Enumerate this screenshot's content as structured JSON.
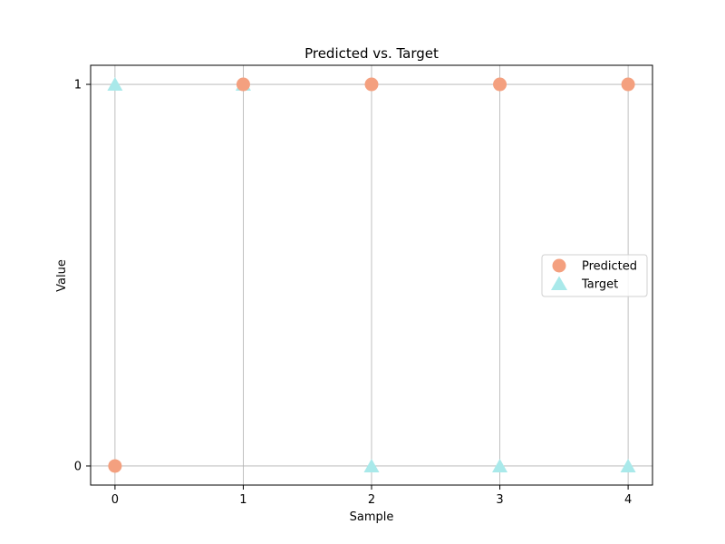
{
  "chart_data": {
    "type": "scatter",
    "title": "Predicted vs. Target",
    "xlabel": "Sample",
    "ylabel": "Value",
    "x": [
      0,
      1,
      2,
      3,
      4
    ],
    "xlim": [
      -0.19,
      4.19
    ],
    "ylim": [
      -0.05,
      1.05
    ],
    "xticks": [
      "0",
      "1",
      "2",
      "3",
      "4"
    ],
    "yticks": [
      "0",
      "1"
    ],
    "grid": true,
    "legend_position": "center-right",
    "series": [
      {
        "name": "Predicted",
        "marker": "circle",
        "color": "#f4a07f",
        "values": [
          0,
          1,
          1,
          1,
          1
        ]
      },
      {
        "name": "Target",
        "marker": "triangle",
        "color": "#a9e9ea",
        "values": [
          1,
          1,
          0,
          0,
          0
        ]
      }
    ]
  }
}
